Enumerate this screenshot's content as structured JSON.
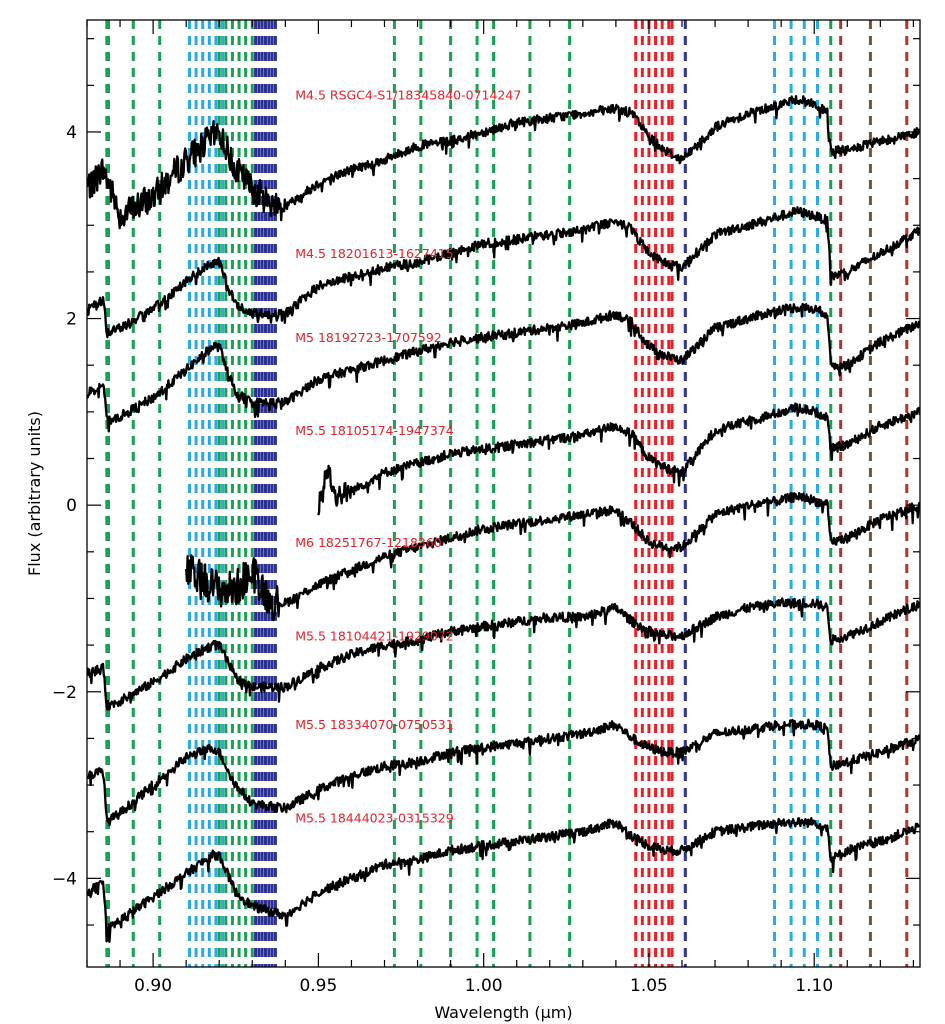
{
  "chart_data": {
    "type": "line",
    "xlabel": "Wavelength (μm)",
    "ylabel": "Flux (arbitrary units)",
    "xlim": [
      0.88,
      1.132
    ],
    "ylim": [
      -4.95,
      5.2
    ],
    "x_ticks": [
      0.9,
      0.95,
      1.0,
      1.05,
      1.1
    ],
    "x_tick_labels": [
      "0.90",
      "0.95",
      "1.00",
      "1.05",
      "1.10"
    ],
    "y_ticks": [
      -4,
      -2,
      0,
      2,
      4
    ],
    "y_tick_labels": [
      "−4",
      "−2",
      "0",
      "2",
      "4"
    ],
    "grid": false,
    "line_color": "#000000",
    "label_color": "#e8202a",
    "series": [
      {
        "name": "M4.5 RSGC4-S1/18345840-0714247",
        "x_start": 0.88,
        "label_x": 0.943,
        "label_y": 4.35,
        "x": [
          0.88,
          0.885,
          0.89,
          0.9,
          0.91,
          0.918,
          0.92,
          0.925,
          0.93,
          0.935,
          0.94,
          0.95,
          0.96,
          0.97,
          0.98,
          0.99,
          1.0,
          1.01,
          1.02,
          1.03,
          1.04,
          1.045,
          1.05,
          1.055,
          1.06,
          1.07,
          1.08,
          1.09,
          1.095,
          1.1,
          1.104,
          1.105,
          1.11,
          1.12,
          1.132
        ],
        "y": [
          3.4,
          3.6,
          3.1,
          3.3,
          3.7,
          3.95,
          4.0,
          3.6,
          3.4,
          3.25,
          3.2,
          3.45,
          3.6,
          3.7,
          3.85,
          3.9,
          4.0,
          4.1,
          4.15,
          4.2,
          4.25,
          4.2,
          3.95,
          3.8,
          3.7,
          4.05,
          4.2,
          4.3,
          4.35,
          4.3,
          4.2,
          3.8,
          3.8,
          3.9,
          4.0
        ]
      },
      {
        "name": "M4.5 18201613-1627415",
        "x_start": 0.88,
        "label_x": 0.943,
        "label_y": 2.65,
        "x": [
          0.88,
          0.885,
          0.886,
          0.89,
          0.9,
          0.91,
          0.918,
          0.92,
          0.925,
          0.93,
          0.94,
          0.95,
          0.96,
          0.97,
          0.98,
          0.99,
          1.0,
          1.01,
          1.02,
          1.03,
          1.04,
          1.045,
          1.05,
          1.055,
          1.06,
          1.07,
          1.08,
          1.09,
          1.095,
          1.1,
          1.104,
          1.105,
          1.11,
          1.12,
          1.132
        ],
        "y": [
          2.1,
          2.2,
          1.85,
          1.9,
          2.1,
          2.4,
          2.6,
          2.6,
          2.15,
          2.05,
          2.05,
          2.35,
          2.45,
          2.55,
          2.6,
          2.7,
          2.8,
          2.85,
          2.9,
          2.95,
          3.05,
          2.95,
          2.7,
          2.6,
          2.55,
          2.9,
          3.0,
          3.1,
          3.15,
          3.1,
          3.05,
          2.45,
          2.5,
          2.7,
          2.95
        ]
      },
      {
        "name": "M5 18192723-1707592",
        "x_start": 0.88,
        "label_x": 0.943,
        "label_y": 1.75,
        "x": [
          0.88,
          0.885,
          0.886,
          0.89,
          0.9,
          0.91,
          0.918,
          0.92,
          0.925,
          0.93,
          0.94,
          0.95,
          0.96,
          0.97,
          0.98,
          0.99,
          1.0,
          1.01,
          1.02,
          1.03,
          1.04,
          1.045,
          1.05,
          1.055,
          1.06,
          1.07,
          1.08,
          1.09,
          1.095,
          1.1,
          1.104,
          1.105,
          1.11,
          1.12,
          1.132
        ],
        "y": [
          1.2,
          1.3,
          0.9,
          0.95,
          1.15,
          1.45,
          1.7,
          1.7,
          1.2,
          1.1,
          1.1,
          1.35,
          1.45,
          1.55,
          1.65,
          1.75,
          1.8,
          1.85,
          1.9,
          1.95,
          2.05,
          1.95,
          1.7,
          1.6,
          1.55,
          1.9,
          2.0,
          2.1,
          2.12,
          2.1,
          2.05,
          1.5,
          1.5,
          1.75,
          1.95
        ]
      },
      {
        "name": "M5.5 18105174-1947374",
        "x_start": 0.95,
        "label_x": 0.943,
        "label_y": 0.75,
        "x": [
          0.95,
          0.953,
          0.955,
          0.96,
          0.97,
          0.98,
          0.99,
          1.0,
          1.01,
          1.02,
          1.03,
          1.04,
          1.045,
          1.05,
          1.055,
          1.06,
          1.07,
          1.08,
          1.09,
          1.095,
          1.1,
          1.104,
          1.105,
          1.11,
          1.12,
          1.132
        ],
        "y": [
          0.0,
          0.4,
          0.1,
          0.15,
          0.35,
          0.45,
          0.55,
          0.6,
          0.65,
          0.7,
          0.75,
          0.85,
          0.75,
          0.5,
          0.4,
          0.35,
          0.8,
          0.9,
          1.0,
          1.05,
          1.0,
          0.95,
          0.6,
          0.65,
          0.85,
          1.0
        ]
      },
      {
        "name": "M6 18251767-1218360",
        "x_start": 0.91,
        "label_x": 0.943,
        "label_y": -0.45,
        "x": [
          0.91,
          0.915,
          0.92,
          0.925,
          0.93,
          0.935,
          0.937,
          0.94,
          0.95,
          0.96,
          0.97,
          0.98,
          0.99,
          1.0,
          1.01,
          1.02,
          1.03,
          1.04,
          1.045,
          1.05,
          1.055,
          1.06,
          1.07,
          1.08,
          1.09,
          1.095,
          1.1,
          1.104,
          1.105,
          1.11,
          1.12,
          1.132
        ],
        "y": [
          -0.7,
          -0.8,
          -0.9,
          -0.9,
          -0.7,
          -1.0,
          -1.05,
          -1.05,
          -0.85,
          -0.7,
          -0.55,
          -0.45,
          -0.35,
          -0.25,
          -0.2,
          -0.15,
          -0.1,
          -0.05,
          -0.2,
          -0.4,
          -0.45,
          -0.45,
          -0.1,
          0.0,
          0.05,
          0.1,
          0.05,
          0.0,
          -0.4,
          -0.35,
          -0.15,
          0.0
        ]
      },
      {
        "name": "M5.5 18104421-1929072",
        "x_start": 0.88,
        "label_x": 0.943,
        "label_y": -1.45,
        "x": [
          0.88,
          0.885,
          0.886,
          0.89,
          0.9,
          0.91,
          0.918,
          0.92,
          0.925,
          0.93,
          0.94,
          0.95,
          0.96,
          0.97,
          0.98,
          0.99,
          1.0,
          1.01,
          1.02,
          1.03,
          1.04,
          1.045,
          1.05,
          1.055,
          1.06,
          1.07,
          1.08,
          1.09,
          1.095,
          1.1,
          1.104,
          1.105,
          1.11,
          1.12,
          1.132
        ],
        "y": [
          -1.8,
          -1.75,
          -2.15,
          -2.1,
          -1.9,
          -1.65,
          -1.5,
          -1.5,
          -1.85,
          -1.95,
          -1.95,
          -1.75,
          -1.6,
          -1.5,
          -1.45,
          -1.35,
          -1.3,
          -1.25,
          -1.2,
          -1.2,
          -1.1,
          -1.25,
          -1.35,
          -1.4,
          -1.4,
          -1.2,
          -1.1,
          -1.05,
          -1.05,
          -1.05,
          -1.1,
          -1.45,
          -1.4,
          -1.25,
          -1.05
        ]
      },
      {
        "name": "M5.5 18334070-0750531",
        "x_start": 0.88,
        "label_x": 0.943,
        "label_y": -2.4,
        "x": [
          0.88,
          0.885,
          0.886,
          0.89,
          0.9,
          0.91,
          0.918,
          0.92,
          0.925,
          0.93,
          0.94,
          0.95,
          0.96,
          0.97,
          0.98,
          0.99,
          1.0,
          1.01,
          1.02,
          1.03,
          1.04,
          1.045,
          1.05,
          1.055,
          1.06,
          1.07,
          1.08,
          1.09,
          1.095,
          1.1,
          1.104,
          1.105,
          1.11,
          1.12,
          1.132
        ],
        "y": [
          -2.9,
          -2.85,
          -3.4,
          -3.3,
          -3.0,
          -2.7,
          -2.6,
          -2.65,
          -3.0,
          -3.2,
          -3.25,
          -3.05,
          -2.9,
          -2.8,
          -2.75,
          -2.65,
          -2.6,
          -2.55,
          -2.5,
          -2.45,
          -2.35,
          -2.5,
          -2.6,
          -2.65,
          -2.65,
          -2.45,
          -2.4,
          -2.35,
          -2.35,
          -2.35,
          -2.4,
          -2.8,
          -2.75,
          -2.65,
          -2.5
        ]
      },
      {
        "name": "M5.5 18444023-0315329",
        "x_start": 0.88,
        "label_x": 0.943,
        "label_y": -3.4,
        "x": [
          0.88,
          0.885,
          0.886,
          0.89,
          0.9,
          0.91,
          0.918,
          0.92,
          0.925,
          0.93,
          0.94,
          0.95,
          0.96,
          0.97,
          0.98,
          0.99,
          1.0,
          1.01,
          1.02,
          1.03,
          1.04,
          1.045,
          1.05,
          1.055,
          1.06,
          1.07,
          1.08,
          1.09,
          1.095,
          1.1,
          1.104,
          1.105,
          1.11,
          1.12,
          1.132
        ],
        "y": [
          -4.15,
          -4.05,
          -4.55,
          -4.45,
          -4.2,
          -3.95,
          -3.75,
          -3.75,
          -4.15,
          -4.3,
          -4.4,
          -4.15,
          -4.0,
          -3.85,
          -3.8,
          -3.7,
          -3.65,
          -3.6,
          -3.55,
          -3.5,
          -3.4,
          -3.55,
          -3.65,
          -3.7,
          -3.7,
          -3.5,
          -3.45,
          -3.4,
          -3.4,
          -3.4,
          -3.45,
          -3.8,
          -3.7,
          -3.6,
          -3.45
        ]
      }
    ],
    "line_markers": [
      {
        "color": "#1aa052",
        "x": [
          0.886,
          0.8865,
          0.894,
          0.902,
          0.92,
          0.922,
          0.924,
          0.926,
          0.928,
          0.93,
          0.973,
          0.981,
          0.99,
          0.998,
          1.003,
          1.014,
          1.026,
          1.105
        ]
      },
      {
        "color": "#29abe2",
        "x": [
          0.911,
          0.913,
          0.915,
          0.917,
          0.919,
          0.921,
          1.088,
          1.093,
          1.097,
          1.101
        ]
      },
      {
        "color": "#2e3192",
        "x": [
          0.931,
          0.932,
          0.933,
          0.934,
          0.935,
          0.936,
          0.937,
          1.061
        ]
      },
      {
        "color": "#e8202a",
        "x": [
          1.046,
          1.048,
          1.05,
          1.052,
          1.054,
          1.056,
          1.057
        ]
      },
      {
        "color": "#b5312a",
        "x": [
          1.108,
          1.128
        ]
      },
      {
        "color": "#7a5230",
        "x": [
          1.117
        ]
      }
    ]
  }
}
